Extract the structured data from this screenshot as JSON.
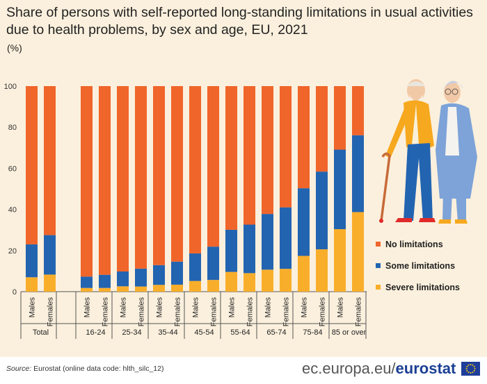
{
  "title": "Share of persons with self-reported long-standing limitations in usual activities due to health problems, by sex and age, EU, 2021",
  "unit": "(%)",
  "source_label": "Source:",
  "source_text": "Eurostat (online data code: hlth_silc_12)",
  "brand_prefix": "ec.europa.eu/",
  "brand_name": "eurostat",
  "colors": {
    "none": "#f0652a",
    "some": "#2364b1",
    "severe": "#f9ae2b",
    "background": "#fbf0dd"
  },
  "legend": [
    {
      "label": "No limitations",
      "color": "#f0652a"
    },
    {
      "label": "Some limitations",
      "color": "#2364b1"
    },
    {
      "label": "Severe limitations",
      "color": "#f9ae2b"
    }
  ],
  "illustration": "elderly-couple-walking",
  "chart_data": {
    "type": "bar",
    "stacked": true,
    "title": "Share of persons with self-reported long-standing limitations in usual activities due to health problems, by sex and age, EU, 2021",
    "ylabel": "(%)",
    "ylim": [
      0,
      100
    ],
    "yticks": [
      0,
      20,
      40,
      60,
      80,
      100
    ],
    "grid": false,
    "legend_position": "right",
    "groups": [
      {
        "label": "Total",
        "sexes": [
          "Males",
          "Females"
        ]
      },
      {
        "label": "16-24",
        "sexes": [
          "Males",
          "Females"
        ]
      },
      {
        "label": "25-34",
        "sexes": [
          "Males",
          "Females"
        ]
      },
      {
        "label": "35-44",
        "sexes": [
          "Males",
          "Females"
        ]
      },
      {
        "label": "45-54",
        "sexes": [
          "Males",
          "Females"
        ]
      },
      {
        "label": "55-64",
        "sexes": [
          "Males",
          "Females"
        ]
      },
      {
        "label": "65-74",
        "sexes": [
          "Males",
          "Females"
        ]
      },
      {
        "label": "75-84",
        "sexes": [
          "Males",
          "Females"
        ]
      },
      {
        "label": "85 or over",
        "sexes": [
          "Males",
          "Females"
        ]
      }
    ],
    "categories": [
      "Total Males",
      "Total Females",
      "16-24 Males",
      "16-24 Females",
      "25-34 Males",
      "25-34 Females",
      "35-44 Males",
      "35-44 Females",
      "45-54 Males",
      "45-54 Females",
      "55-64 Males",
      "55-64 Females",
      "65-74 Males",
      "65-74 Females",
      "75-84 Males",
      "75-84 Females",
      "85 or over Males",
      "85 or over Females"
    ],
    "series": [
      {
        "name": "Severe limitations",
        "key": "severe",
        "values": [
          7.0,
          8.3,
          1.8,
          1.8,
          2.6,
          2.5,
          3.3,
          3.4,
          5.2,
          5.7,
          9.6,
          9.0,
          10.7,
          11.1,
          17.4,
          20.6,
          30.4,
          38.7
        ]
      },
      {
        "name": "Some limitations",
        "key": "some",
        "values": [
          16.0,
          19.2,
          5.5,
          6.4,
          7.2,
          8.7,
          9.6,
          11.2,
          13.4,
          16.2,
          20.5,
          23.6,
          27.1,
          29.9,
          32.9,
          37.8,
          38.7,
          37.4
        ]
      },
      {
        "name": "No limitations",
        "key": "none",
        "values": [
          77.0,
          72.5,
          92.7,
          91.8,
          90.2,
          88.8,
          87.1,
          85.4,
          81.4,
          78.1,
          69.9,
          67.4,
          62.2,
          59.0,
          49.7,
          41.6,
          30.9,
          23.9
        ]
      }
    ]
  }
}
